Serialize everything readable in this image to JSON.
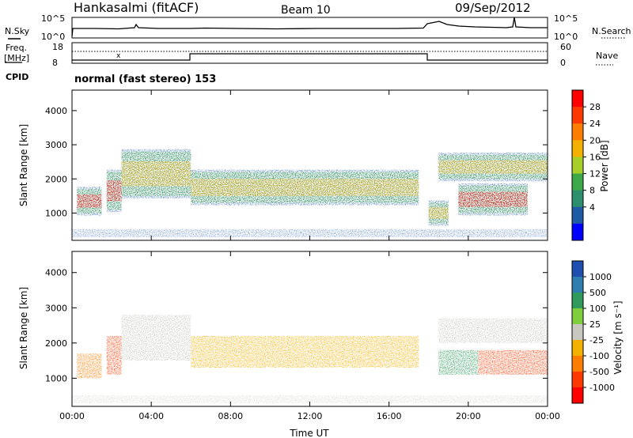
{
  "header": {
    "station": "Hankasalmi (fitACF)",
    "beam": "Beam 10",
    "date": "09/Sep/2012"
  },
  "noise_panel": {
    "left_label": "N.Sky",
    "right_label": "N.Search",
    "left_ticks": [
      "10^5",
      "10^0"
    ],
    "right_ticks": [
      "10^5",
      "10^0"
    ]
  },
  "freq_panel": {
    "left_label_1": "Freq.",
    "left_label_2": "[MHz]",
    "left_ticks": [
      "18",
      "8"
    ],
    "right_label": "Nave",
    "right_ticks": [
      "60",
      "0"
    ],
    "cpid_label": "CPID",
    "cpid_text": "normal (fast stereo) 153"
  },
  "chart_data": [
    {
      "type": "heatmap",
      "ylabel": "Slant Range [km]",
      "xlabel": "",
      "ylim": [
        200,
        4600
      ],
      "y_ticks": [
        "1000",
        "2000",
        "3000",
        "4000"
      ],
      "x_ticks": [
        "00:00",
        "04:00",
        "08:00",
        "12:00",
        "16:00",
        "20:00",
        "00:00"
      ],
      "colorbar": {
        "label": "Power [dB]",
        "ticks": [
          "28",
          "24",
          "20",
          "16",
          "12",
          "8",
          "4"
        ],
        "colors": [
          "#ff0000",
          "#ff3a00",
          "#ff7d00",
          "#f4b000",
          "#a6cf2a",
          "#3ca84a",
          "#2e8f6e",
          "#1e5aa6",
          "#0000ff"
        ]
      },
      "bands": [
        {
          "x": "00:15-01:30",
          "range_km": [
            1000,
            1700
          ],
          "level": "high"
        },
        {
          "x": "01:45-02:30",
          "range_km": [
            1100,
            2200
          ],
          "level": "high"
        },
        {
          "x": "02:30-06:00",
          "range_km": [
            1500,
            2800
          ],
          "level": "medium"
        },
        {
          "x": "06:00-17:30",
          "range_km": [
            1300,
            2200
          ],
          "level": "medium"
        },
        {
          "x": "18:00-19:00",
          "range_km": [
            700,
            1300
          ],
          "level": "medium"
        },
        {
          "x": "19:30-23:00",
          "range_km": [
            1000,
            1800
          ],
          "level": "high"
        },
        {
          "x": "18:30-24:00",
          "range_km": [
            2000,
            2700
          ],
          "level": "medium"
        }
      ]
    },
    {
      "type": "heatmap",
      "ylabel": "Slant Range [km]",
      "xlabel": "Time UT",
      "ylim": [
        200,
        4600
      ],
      "y_ticks": [
        "1000",
        "2000",
        "3000",
        "4000"
      ],
      "x_ticks": [
        "00:00",
        "04:00",
        "08:00",
        "12:00",
        "16:00",
        "20:00",
        "00:00"
      ],
      "colorbar": {
        "label": "Velocity [m s⁻¹]",
        "ticks": [
          "1000",
          "500",
          "100",
          "25",
          "-25",
          "-100",
          "-500",
          "-1000"
        ],
        "colors": [
          "#1e4fb0",
          "#2e7fb0",
          "#2f9a5c",
          "#7fce3e",
          "#c8c8c0",
          "#f4b000",
          "#ff7d00",
          "#ff3a00",
          "#ff0000"
        ]
      },
      "bands": [
        {
          "x": "00:15-01:30",
          "range_km": [
            1000,
            1700
          ],
          "velocity": "-100"
        },
        {
          "x": "01:45-02:30",
          "range_km": [
            1100,
            2200
          ],
          "velocity": "-500"
        },
        {
          "x": "02:30-06:00",
          "range_km": [
            1500,
            2800
          ],
          "velocity": "25"
        },
        {
          "x": "06:00-17:30",
          "range_km": [
            1300,
            2200
          ],
          "velocity": "-25"
        },
        {
          "x": "18:30-20:30",
          "range_km": [
            1100,
            1800
          ],
          "velocity": "500"
        },
        {
          "x": "20:30-24:00",
          "range_km": [
            1100,
            1800
          ],
          "velocity": "-500"
        },
        {
          "x": "18:30-24:00",
          "range_km": [
            2000,
            2700
          ],
          "velocity": "25"
        }
      ]
    }
  ]
}
